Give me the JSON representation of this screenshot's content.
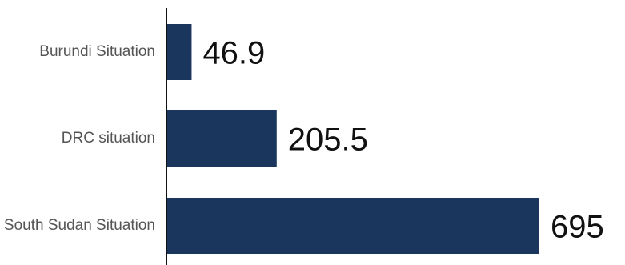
{
  "chart_data": {
    "type": "bar",
    "orientation": "horizontal",
    "categories": [
      "Burundi Situation",
      "DRC situation",
      "South Sudan Situation"
    ],
    "values": [
      46.9,
      205.5,
      695
    ],
    "value_labels": [
      "46.9",
      "205.5",
      "695"
    ],
    "xlim": [
      0,
      695
    ],
    "grid": false,
    "bar_color": "#1b365d"
  }
}
